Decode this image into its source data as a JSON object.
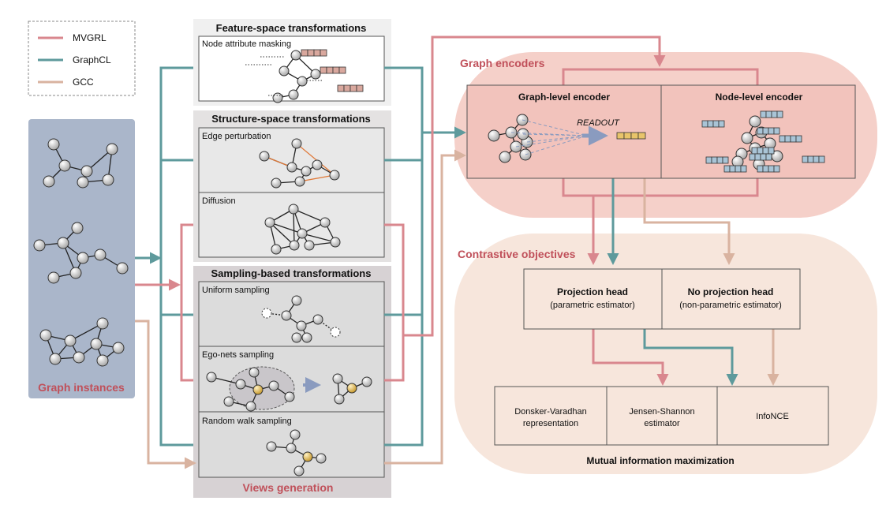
{
  "legend": [
    {
      "label": "MVGRL",
      "color": "#d9878e"
    },
    {
      "label": "GraphCL",
      "color": "#5e9a9c"
    },
    {
      "label": "GCC",
      "color": "#d9b3a0"
    }
  ],
  "graph_instances": {
    "label": "Graph instances"
  },
  "views": {
    "label": "Views generation",
    "feature_group": {
      "title": "Feature-space transformations",
      "items": [
        "Node attribute masking"
      ]
    },
    "structure_group": {
      "title": "Structure-space transformations",
      "items": [
        "Edge perturbation",
        "Diffusion"
      ]
    },
    "sampling_group": {
      "title": "Sampling-based transformations",
      "items": [
        "Uniform sampling",
        "Ego-nets sampling",
        "Random walk sampling"
      ]
    }
  },
  "encoders": {
    "label": "Graph encoders",
    "graph_level": "Graph-level encoder",
    "node_level": "Node-level encoder",
    "readout": "READOUT"
  },
  "contrastive": {
    "label": "Contrastive objectives",
    "projection": {
      "title": "Projection head",
      "subtitle": "(parametric estimator)"
    },
    "no_projection": {
      "title": "No projection head",
      "subtitle": "(non-parametric estimator)"
    },
    "estimators": {
      "dv": [
        "Donsker-Varadhan",
        "representation"
      ],
      "js": [
        "Jensen-Shannon",
        "estimator"
      ],
      "infonce": "InfoNCE"
    },
    "mi_label": "Mutual  information maximization"
  },
  "colors": {
    "mvgrl": "#d9878e",
    "graphcl": "#5e9a9c",
    "gcc": "#d9b3a0",
    "instances_bg": "#aab6ca",
    "instances_label": "#c0505a",
    "encoder_bg": "#f5d0c9",
    "objective_bg": "#f7e6dc",
    "title_red": "#c0505a",
    "node_fill": "#cfcfcf",
    "feature_pink": "#d9a89e",
    "feature_blue": "#a9c4d6",
    "feature_yellow": "#e8c46a",
    "ego_node": "#d4b25a"
  }
}
